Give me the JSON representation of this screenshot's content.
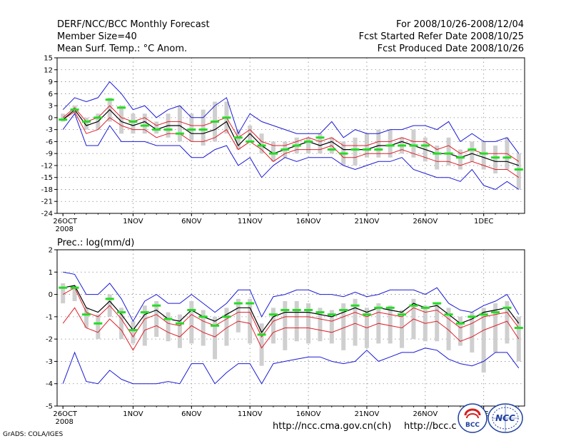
{
  "header": {
    "title": "DERF/NCC/BCC Monthly Forecast",
    "member_size": "Member Size=40",
    "variable": "Mean Surf. Temp.: °C Anom.",
    "period": "For 2008/10/26-2008/12/04",
    "started": "Fcst Started Refer Date 2008/10/25",
    "produced": "Fcst Produced Date 2008/10/26"
  },
  "footer": {
    "url1": "http://ncc.cma.gov.cn(ch)",
    "url2": "http://bcc.c",
    "grads": "GrADS: COLA/IGES",
    "logo1_text": "BCC",
    "logo2_text": "NCC"
  },
  "colors": {
    "mean": "#000000",
    "spread": "#e0202a",
    "range": "#1a1ad6",
    "median": "#22dd22",
    "box": "#cfcfcf",
    "grid": "#8a8a8a"
  },
  "chart_data": [
    {
      "type": "line",
      "title": "",
      "ylabel": "Mean Surf. Temp.: °C Anom.",
      "ylim": [
        -24,
        15
      ],
      "yticks": [
        15,
        12,
        9,
        6,
        3,
        0,
        -3,
        -6,
        -9,
        -12,
        -15,
        -18,
        -21,
        -24
      ],
      "x_tick_labels": [
        "26OCT",
        "1NOV",
        "6NOV",
        "11NOV",
        "16NOV",
        "21NOV",
        "26NOV",
        "1DEC"
      ],
      "x_tick_days": [
        0,
        6,
        11,
        16,
        21,
        26,
        31,
        36
      ],
      "x_year_label": "2008",
      "days": 40,
      "series": [
        {
          "name": "ensemble mean",
          "values": [
            -0.5,
            2,
            -2,
            -1,
            2,
            -1,
            -2,
            -1,
            -3,
            -2,
            -2,
            -4,
            -4,
            -3,
            -1,
            -7,
            -4,
            -7,
            -9,
            -8,
            -7,
            -6,
            -7,
            -6,
            -8,
            -8,
            -8,
            -7,
            -7,
            -6,
            -7,
            -8,
            -9,
            -9,
            -10,
            -9,
            -10,
            -11,
            -11,
            -12
          ]
        },
        {
          "name": "upper spread",
          "values": [
            0,
            2.5,
            -1,
            0,
            3,
            0,
            -1,
            0,
            -2,
            -1,
            -1,
            -2,
            -2,
            -1,
            0,
            -5,
            -3,
            -6,
            -7,
            -7,
            -6,
            -5,
            -6,
            -5,
            -7,
            -7,
            -7,
            -6,
            -6,
            -5,
            -6,
            -6,
            -8,
            -7,
            -9,
            -8,
            -9,
            -9,
            -9,
            -11
          ]
        },
        {
          "name": "lower spread",
          "values": [
            -0.5,
            1.5,
            -4,
            -3,
            0,
            -2,
            -3,
            -3,
            -5,
            -4,
            -4,
            -6,
            -6,
            -5,
            -3,
            -8,
            -6,
            -8,
            -11,
            -9,
            -8,
            -8,
            -8,
            -7,
            -10,
            -10,
            -9,
            -9,
            -9,
            -8,
            -9,
            -10,
            -11,
            -11,
            -12,
            -11,
            -12,
            -13,
            -13,
            -15
          ]
        },
        {
          "name": "maximum",
          "values": [
            2,
            5,
            4,
            5,
            9,
            6,
            2,
            3,
            0,
            2,
            3,
            0,
            0,
            3,
            5,
            -4,
            1,
            -1,
            -2,
            -3,
            -4,
            -4,
            -4,
            -1,
            -5,
            -3,
            -4,
            -4,
            -3,
            -3,
            -2,
            -2,
            -3,
            -1,
            -6,
            -4,
            -6,
            -6,
            -5,
            -9
          ]
        },
        {
          "name": "minimum",
          "values": [
            -3,
            1,
            -7,
            -7,
            -2,
            -6,
            -6,
            -6,
            -7,
            -7,
            -7,
            -10,
            -10,
            -8,
            -7,
            -12,
            -10,
            -15,
            -12,
            -10,
            -11,
            -10,
            -10,
            -10,
            -12,
            -13,
            -12,
            -11,
            -11,
            -10,
            -13,
            -14,
            -15,
            -15,
            -16,
            -13,
            -17,
            -18,
            -16,
            -18
          ]
        },
        {
          "name": "median",
          "values": [
            -0.5,
            2,
            -1,
            0,
            4.5,
            2.5,
            -1,
            -2,
            -3,
            -3,
            -4,
            -3,
            -3,
            -1,
            0,
            -5,
            -6,
            -7,
            -9,
            -8,
            -7,
            -6,
            -5,
            -8,
            -9,
            -8,
            -8,
            -8,
            -7,
            -7,
            -7,
            -7,
            -9,
            -9,
            -10,
            -8,
            -9,
            -10,
            -10,
            -13
          ]
        },
        {
          "name": "box top",
          "values": [
            1,
            3,
            0,
            1,
            5,
            3,
            1,
            1,
            -1,
            1,
            3,
            1,
            2,
            4,
            4,
            -3,
            -2,
            -4,
            -6,
            -6,
            -5,
            -5,
            -4,
            -5,
            -6,
            -5,
            -4,
            -3,
            -3,
            -5,
            -3,
            -5,
            -7,
            -5,
            -8,
            -6,
            -6,
            -7,
            -5,
            -9
          ]
        },
        {
          "name": "box bottom",
          "values": [
            -1,
            1,
            -3,
            -3,
            -1,
            -4,
            -4,
            -4,
            -4,
            -5,
            -6,
            -6,
            -7,
            -6,
            -4,
            -8,
            -6,
            -9,
            -11,
            -10,
            -9,
            -9,
            -9,
            -9,
            -12,
            -12,
            -10,
            -10,
            -10,
            -9,
            -10,
            -11,
            -13,
            -12,
            -13,
            -11,
            -13,
            -14,
            -13,
            -18
          ]
        }
      ]
    },
    {
      "type": "line",
      "title": "Prec.: log(mm/d)",
      "ylabel": "Prec.: log(mm/d)",
      "ylim": [
        -5,
        2
      ],
      "yticks": [
        2,
        1,
        0,
        -1,
        -2,
        -3,
        -4,
        -5
      ],
      "x_tick_labels": [
        "26OCT",
        "1NOV",
        "6NOV",
        "11NOV",
        "16NOV",
        "21NOV",
        "26NOV",
        "1DEC"
      ],
      "x_tick_days": [
        0,
        6,
        11,
        16,
        21,
        26,
        31,
        36
      ],
      "x_year_label": "2008",
      "days": 40,
      "series": [
        {
          "name": "ensemble mean",
          "values": [
            0.3,
            0.4,
            -0.6,
            -0.8,
            -0.3,
            -0.9,
            -1.6,
            -0.9,
            -0.7,
            -1.1,
            -1.2,
            -0.7,
            -1,
            -1.2,
            -0.9,
            -0.6,
            -0.6,
            -1.7,
            -1,
            -0.8,
            -0.8,
            -0.8,
            -0.9,
            -1,
            -0.8,
            -0.6,
            -0.8,
            -0.6,
            -0.7,
            -0.8,
            -0.4,
            -0.6,
            -0.5,
            -0.9,
            -1.3,
            -1.1,
            -0.8,
            -0.7,
            -0.6,
            -1.3
          ]
        },
        {
          "name": "upper spread",
          "values": [
            0,
            0.3,
            -0.8,
            -1,
            -0.5,
            -1.1,
            -1.9,
            -1.1,
            -0.9,
            -1.3,
            -1.4,
            -0.9,
            -1.2,
            -1.4,
            -1.1,
            -0.8,
            -0.8,
            -1.9,
            -1.2,
            -1,
            -1,
            -1,
            -1.1,
            -1.2,
            -1,
            -0.8,
            -1,
            -0.8,
            -0.9,
            -1,
            -0.6,
            -0.8,
            -0.7,
            -1.1,
            -1.5,
            -1.3,
            -1,
            -0.9,
            -0.8,
            -1.5
          ]
        },
        {
          "name": "lower spread",
          "values": [
            -1.3,
            -0.6,
            -1.5,
            -1.7,
            -1.1,
            -1.6,
            -2.5,
            -1.6,
            -1.4,
            -1.7,
            -1.9,
            -1.4,
            -1.7,
            -1.9,
            -1.5,
            -1.2,
            -1.3,
            -2.4,
            -1.7,
            -1.5,
            -1.5,
            -1.5,
            -1.6,
            -1.7,
            -1.5,
            -1.3,
            -1.5,
            -1.3,
            -1.4,
            -1.5,
            -1.1,
            -1.3,
            -1.2,
            -1.6,
            -2.1,
            -1.9,
            -1.6,
            -1.4,
            -1.2,
            -2
          ]
        },
        {
          "name": "maximum",
          "values": [
            1,
            0.9,
            0,
            0,
            0.5,
            -0.2,
            -1.2,
            -0.3,
            0,
            -0.4,
            -0.4,
            0,
            -0.4,
            -0.8,
            -0.4,
            0.2,
            0.2,
            -1,
            -0.1,
            0,
            0.2,
            0.2,
            0,
            0,
            -0.1,
            0.1,
            -0.1,
            0,
            0.2,
            0.2,
            0.2,
            0,
            0.3,
            -0.4,
            -0.7,
            -0.8,
            -0.5,
            -0.3,
            0,
            -0.9
          ]
        },
        {
          "name": "minimum",
          "values": [
            -4,
            -2.6,
            -3.9,
            -4,
            -3.4,
            -3.8,
            -4,
            -4,
            -4,
            -3.9,
            -4,
            -3.1,
            -3.1,
            -4,
            -3.5,
            -3.1,
            -3.1,
            -4,
            -3.1,
            -3,
            -2.9,
            -2.8,
            -2.8,
            -3,
            -3.1,
            -3,
            -2.5,
            -3,
            -2.8,
            -2.6,
            -2.6,
            -2.4,
            -2.5,
            -2.9,
            -3.1,
            -3.2,
            -3,
            -2.6,
            -2.6,
            -3.3
          ]
        },
        {
          "name": "median",
          "values": [
            0.3,
            0.3,
            -0.9,
            -1.3,
            -0.2,
            -0.8,
            -1.6,
            -0.8,
            -0.5,
            -1.1,
            -1.3,
            -0.7,
            -1,
            -1.4,
            -1,
            -0.4,
            -0.4,
            -1.8,
            -0.9,
            -0.7,
            -0.7,
            -0.7,
            -0.8,
            -0.9,
            -0.7,
            -0.5,
            -0.9,
            -0.6,
            -0.6,
            -0.9,
            -0.5,
            -0.6,
            -0.4,
            -0.9,
            -1.3,
            -1,
            -0.9,
            -0.8,
            -0.6,
            -1.5
          ]
        },
        {
          "name": "box top",
          "values": [
            0.5,
            0.4,
            -0.6,
            -0.9,
            0,
            -0.6,
            -1.2,
            -0.5,
            -0.3,
            -0.8,
            -0.9,
            -0.3,
            -0.7,
            -1,
            -0.6,
            -0.2,
            -0.2,
            -1.3,
            -0.6,
            -0.3,
            -0.3,
            -0.4,
            -0.6,
            -0.7,
            -0.4,
            -0.2,
            -0.6,
            -0.4,
            -0.5,
            -0.7,
            -0.2,
            -0.5,
            -0.4,
            -0.6,
            -1,
            -0.8,
            -0.6,
            -0.4,
            -0.3,
            -1
          ]
        },
        {
          "name": "box bottom",
          "values": [
            -0.4,
            -0.3,
            -1.5,
            -2,
            -1,
            -2,
            -2.2,
            -2.3,
            -1.9,
            -2.1,
            -2.4,
            -2.2,
            -2.3,
            -2.9,
            -2.3,
            -1.7,
            -2.2,
            -3.2,
            -2.2,
            -2.5,
            -2.1,
            -2.2,
            -2.1,
            -2.2,
            -2.5,
            -2.3,
            -2.4,
            -2.2,
            -2.2,
            -2.4,
            -2,
            -2.1,
            -2.1,
            -2.5,
            -2.3,
            -2.6,
            -3.5,
            -2.6,
            -2.2,
            -3
          ]
        }
      ]
    }
  ]
}
